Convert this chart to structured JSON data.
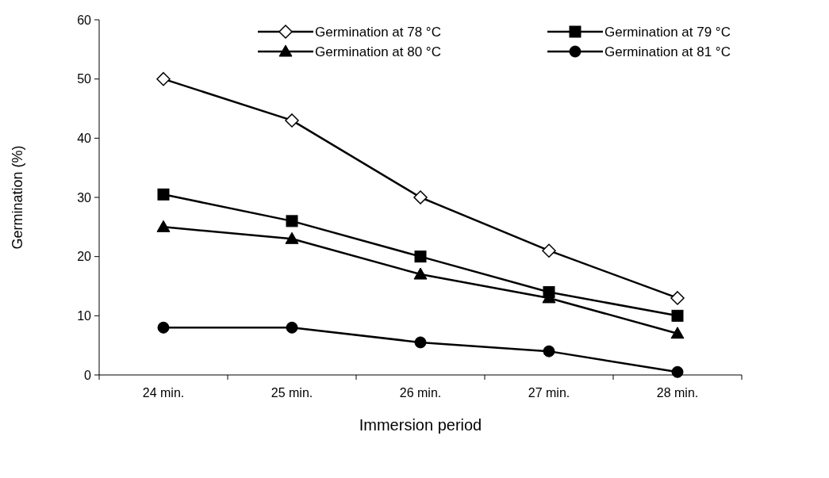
{
  "chart_data": {
    "type": "line",
    "xlabel": "Immersion period",
    "ylabel": "Germination (%)",
    "categories": [
      "24 min.",
      "25 min.",
      "26 min.",
      "27 min.",
      "28 min."
    ],
    "ylim": [
      0,
      60
    ],
    "yticks": [
      0,
      10,
      20,
      30,
      40,
      50,
      60
    ],
    "grid": false,
    "legend": "top right",
    "line_style": "solid",
    "series": [
      {
        "name": "Germination at 78 °C",
        "color": "#000000",
        "marker": "diamond",
        "values": [
          50,
          43,
          30,
          21,
          13
        ]
      },
      {
        "name": "Germination at 79 °C",
        "color": "#000000",
        "marker": "square",
        "values": [
          30.5,
          26,
          20,
          14,
          10
        ]
      },
      {
        "name": "Germination at 80 °C",
        "color": "#000000",
        "marker": "triangle",
        "values": [
          25,
          23,
          17,
          13,
          7
        ]
      },
      {
        "name": "Germination at 81 °C",
        "color": "#000000",
        "marker": "circle",
        "values": [
          8,
          8,
          5.5,
          4,
          0.5
        ]
      }
    ]
  }
}
